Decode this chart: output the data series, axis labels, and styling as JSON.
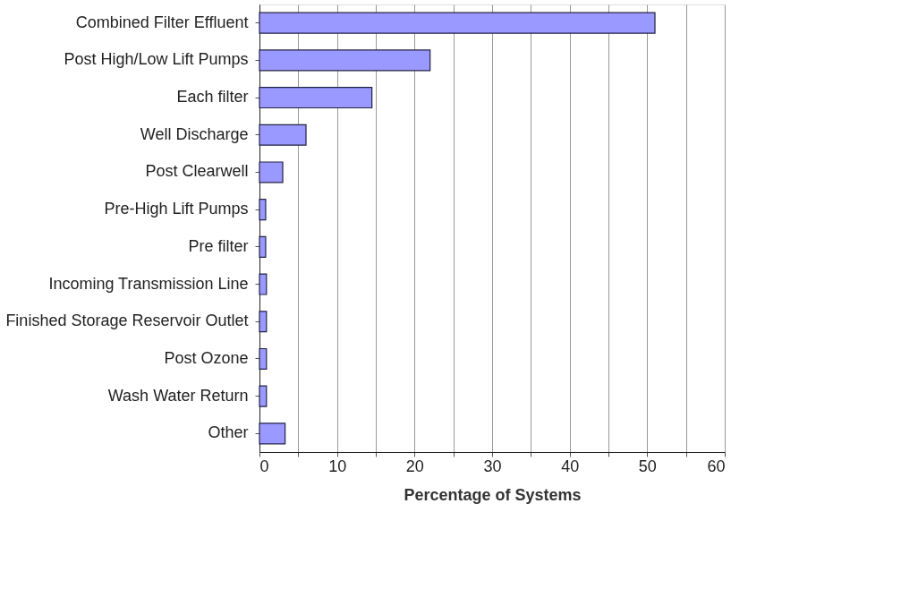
{
  "chart_data": {
    "type": "bar",
    "orientation": "horizontal",
    "xlabel": "Percentage of Systems",
    "categories": [
      "Combined Filter Effluent",
      "Post High/Low Lift Pumps",
      "Each filter",
      "Well Discharge",
      "Post Clearwell",
      "Pre-High Lift Pumps",
      "Pre filter",
      "Incoming Transmission Line",
      "Finished Storage Reservoir Outlet",
      "Post Ozone",
      "Wash Water Return",
      "Other"
    ],
    "values": [
      51,
      22,
      14.5,
      6,
      3,
      0.8,
      0.8,
      0.9,
      0.9,
      0.9,
      0.9,
      3.3
    ],
    "color": "#9999ff",
    "xlim": [
      0,
      60
    ],
    "xticks": [
      0,
      {
        "value": 5,
        "label": null
      },
      10,
      {
        "value": 15,
        "label": null
      },
      20,
      {
        "value": 25,
        "label": null
      },
      30,
      {
        "value": 35,
        "label": null
      },
      40,
      {
        "value": 45,
        "label": null
      },
      50,
      {
        "value": 55,
        "label": null
      },
      60
    ],
    "grid": "x"
  }
}
